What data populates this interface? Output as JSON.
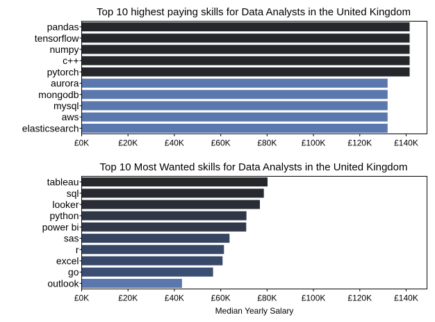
{
  "chart_data": [
    {
      "type": "bar",
      "orientation": "horizontal",
      "title": "Top 10 highest paying skills for Data Analysts in the United Kingdom",
      "xlabel": "",
      "ylabel": "",
      "categories": [
        "pandas",
        "tensorflow",
        "numpy",
        "c++",
        "pytorch",
        "aurora",
        "mongodb",
        "mysql",
        "aws",
        "elasticsearch"
      ],
      "values": [
        141500,
        141500,
        141500,
        141500,
        141500,
        132000,
        132000,
        132000,
        132000,
        132000
      ],
      "colors": [
        "#25272b",
        "#25272b",
        "#25272b",
        "#25272b",
        "#25272b",
        "#5a78ad",
        "#5a78ad",
        "#5a78ad",
        "#5a78ad",
        "#5a78ad"
      ],
      "xlim": [
        0,
        149000
      ],
      "xticks": [
        0,
        20000,
        40000,
        60000,
        80000,
        100000,
        120000,
        140000
      ],
      "xtick_labels": [
        "£0K",
        "£20K",
        "£40K",
        "£60K",
        "£80K",
        "£100K",
        "£120K",
        "£140K"
      ],
      "grid": false,
      "legend": "none"
    },
    {
      "type": "bar",
      "orientation": "horizontal",
      "title": "Top 10 Most Wanted skills for Data Analysts in the United Kingdom",
      "xlabel": "Median Yearly Salary",
      "ylabel": "",
      "categories": [
        "tableau",
        "sql",
        "looker",
        "python",
        "power bi",
        "sas",
        "r",
        "excel",
        "go",
        "outlook"
      ],
      "values": [
        80200,
        78600,
        76900,
        71100,
        71000,
        63800,
        61400,
        60800,
        56700,
        43300
      ],
      "colors": [
        "#25272b",
        "#26292f",
        "#292d35",
        "#2f3646",
        "#30384a",
        "#354461",
        "#374867",
        "#38496a",
        "#3b4e74",
        "#5a78ad"
      ],
      "xlim": [
        0,
        149000
      ],
      "xticks": [
        0,
        20000,
        40000,
        60000,
        80000,
        100000,
        120000,
        140000
      ],
      "xtick_labels": [
        "£0K",
        "£20K",
        "£40K",
        "£60K",
        "£80K",
        "£100K",
        "£120K",
        "£140K"
      ],
      "grid": false,
      "legend": "none"
    }
  ]
}
